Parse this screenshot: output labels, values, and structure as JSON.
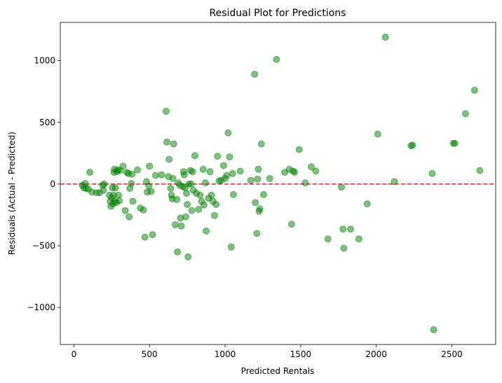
{
  "chart_data": {
    "type": "scatter",
    "title": "Residual Plot for Predictions",
    "xlabel": "Predicted Rentals",
    "ylabel": "Residuals (Actual - Predicted)",
    "xlim": [
      -90,
      2790
    ],
    "ylim": [
      -1300,
      1310
    ],
    "xticks": [
      0,
      500,
      1000,
      1500,
      2000,
      2500
    ],
    "yticks": [
      -1000,
      -500,
      0,
      500,
      1000
    ],
    "xtick_labels": [
      "0",
      "500",
      "1000",
      "1500",
      "2000",
      "2500"
    ],
    "ytick_labels": [
      "−1000",
      "−500",
      "0",
      "500",
      "1000"
    ],
    "grid": false,
    "reference_line": {
      "y": 0,
      "color": "#d62728",
      "style": "dashed"
    },
    "marker_color": "#008000",
    "points": [
      [
        55,
        -10
      ],
      [
        65,
        -30
      ],
      [
        75,
        5
      ],
      [
        80,
        -35
      ],
      [
        95,
        -40
      ],
      [
        105,
        95
      ],
      [
        120,
        -65
      ],
      [
        150,
        -70
      ],
      [
        170,
        -70
      ],
      [
        190,
        -10
      ],
      [
        195,
        -50
      ],
      [
        200,
        0
      ],
      [
        235,
        -90
      ],
      [
        240,
        -140
      ],
      [
        245,
        -180
      ],
      [
        250,
        -110
      ],
      [
        255,
        -30
      ],
      [
        258,
        -160
      ],
      [
        262,
        -90
      ],
      [
        265,
        95
      ],
      [
        268,
        120
      ],
      [
        270,
        -140
      ],
      [
        275,
        -30
      ],
      [
        280,
        -150
      ],
      [
        285,
        100
      ],
      [
        290,
        115
      ],
      [
        295,
        -90
      ],
      [
        300,
        -135
      ],
      [
        305,
        110
      ],
      [
        325,
        145
      ],
      [
        340,
        -215
      ],
      [
        350,
        95
      ],
      [
        360,
        85
      ],
      [
        365,
        -265
      ],
      [
        370,
        -35
      ],
      [
        380,
        5
      ],
      [
        385,
        80
      ],
      [
        390,
        -140
      ],
      [
        420,
        115
      ],
      [
        440,
        -195
      ],
      [
        460,
        -210
      ],
      [
        470,
        -430
      ],
      [
        480,
        20
      ],
      [
        485,
        -65
      ],
      [
        495,
        -15
      ],
      [
        500,
        145
      ],
      [
        510,
        -60
      ],
      [
        520,
        -410
      ],
      [
        540,
        70
      ],
      [
        580,
        75
      ],
      [
        610,
        590
      ],
      [
        615,
        340
      ],
      [
        625,
        60
      ],
      [
        630,
        200
      ],
      [
        640,
        -35
      ],
      [
        645,
        -90
      ],
      [
        650,
        -120
      ],
      [
        655,
        45
      ],
      [
        660,
        325
      ],
      [
        670,
        -330
      ],
      [
        680,
        -125
      ],
      [
        685,
        -550
      ],
      [
        690,
        10
      ],
      [
        700,
        -10
      ],
      [
        705,
        -275
      ],
      [
        710,
        -340
      ],
      [
        720,
        -20
      ],
      [
        725,
        100
      ],
      [
        730,
        75
      ],
      [
        735,
        -30
      ],
      [
        740,
        -265
      ],
      [
        745,
        -75
      ],
      [
        750,
        -165
      ],
      [
        755,
        -590
      ],
      [
        760,
        0
      ],
      [
        770,
        110
      ],
      [
        775,
        0
      ],
      [
        780,
        -215
      ],
      [
        785,
        100
      ],
      [
        790,
        -50
      ],
      [
        800,
        230
      ],
      [
        810,
        -75
      ],
      [
        825,
        -205
      ],
      [
        835,
        -90
      ],
      [
        845,
        -140
      ],
      [
        855,
        120
      ],
      [
        860,
        -170
      ],
      [
        870,
        10
      ],
      [
        875,
        -380
      ],
      [
        890,
        -115
      ],
      [
        900,
        100
      ],
      [
        910,
        -90
      ],
      [
        920,
        -140
      ],
      [
        930,
        -255
      ],
      [
        940,
        -165
      ],
      [
        950,
        225
      ],
      [
        960,
        25
      ],
      [
        975,
        30
      ],
      [
        990,
        150
      ],
      [
        1000,
        45
      ],
      [
        1010,
        70
      ],
      [
        1020,
        415
      ],
      [
        1030,
        220
      ],
      [
        1040,
        -510
      ],
      [
        1050,
        85
      ],
      [
        1055,
        -85
      ],
      [
        1100,
        105
      ],
      [
        1170,
        30
      ],
      [
        1195,
        890
      ],
      [
        1200,
        -150
      ],
      [
        1210,
        -400
      ],
      [
        1215,
        40
      ],
      [
        1220,
        120
      ],
      [
        1225,
        -220
      ],
      [
        1230,
        -200
      ],
      [
        1240,
        325
      ],
      [
        1255,
        -85
      ],
      [
        1295,
        45
      ],
      [
        1340,
        1010
      ],
      [
        1395,
        95
      ],
      [
        1425,
        120
      ],
      [
        1440,
        -325
      ],
      [
        1450,
        105
      ],
      [
        1460,
        95
      ],
      [
        1490,
        280
      ],
      [
        1530,
        10
      ],
      [
        1570,
        140
      ],
      [
        1600,
        105
      ],
      [
        1680,
        -445
      ],
      [
        1770,
        -25
      ],
      [
        1780,
        -365
      ],
      [
        1785,
        -520
      ],
      [
        1830,
        -365
      ],
      [
        1885,
        -445
      ],
      [
        1940,
        -160
      ],
      [
        2010,
        405
      ],
      [
        2060,
        1190
      ],
      [
        2120,
        20
      ],
      [
        2230,
        310
      ],
      [
        2240,
        315
      ],
      [
        2370,
        85
      ],
      [
        2380,
        -1180
      ],
      [
        2510,
        330
      ],
      [
        2520,
        330
      ],
      [
        2590,
        570
      ],
      [
        2650,
        760
      ],
      [
        2685,
        110
      ]
    ]
  }
}
